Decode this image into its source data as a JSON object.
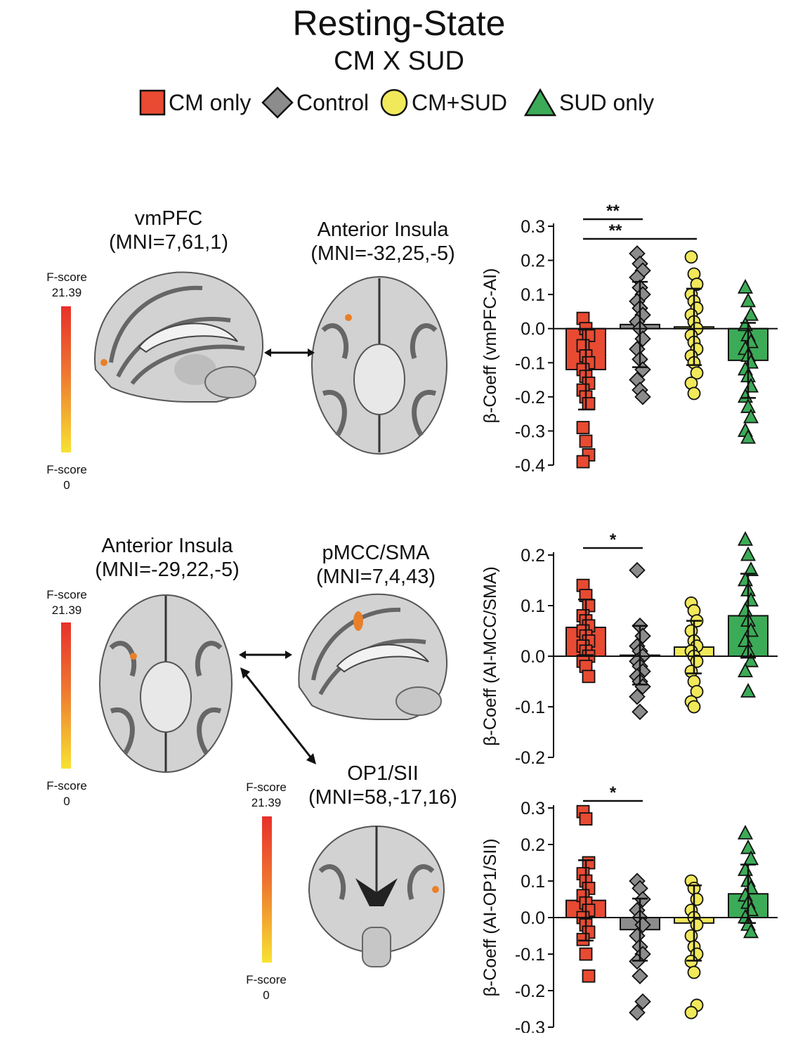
{
  "title": "Resting-State",
  "subtitle": "CM X SUD",
  "legend": [
    {
      "label": "CM only",
      "marker": "square",
      "color": "#e84a32"
    },
    {
      "label": "Control",
      "marker": "diamond",
      "color": "#8c8c8c"
    },
    {
      "label": "CM+SUD",
      "marker": "circle",
      "color": "#f1e95a"
    },
    {
      "label": "SUD only",
      "marker": "triangle",
      "color": "#3cab57"
    }
  ],
  "brain_panels": {
    "top": {
      "region_a": {
        "name": "vmPFC",
        "mni": "(MNI=7,61,1)"
      },
      "region_b": {
        "name": "Anterior Insula",
        "mni": "(MNI=-32,25,-5)"
      },
      "colorbar": {
        "top_label": "F-score",
        "top_value": "21.39",
        "bottom_label": "F-score",
        "bottom_value": "0"
      }
    },
    "bottom": {
      "region_a": {
        "name": "Anterior Insula",
        "mni": "(MNI=-29,22,-5)"
      },
      "region_b": {
        "name": "pMCC/SMA",
        "mni": "(MNI=7,4,43)"
      },
      "region_c": {
        "name": "OP1/SII",
        "mni": "(MNI=58,-17,16)"
      },
      "colorbar": {
        "top_label": "F-score",
        "top_value": "21.39",
        "bottom_label": "F-score",
        "bottom_value": "0"
      },
      "colorbar2": {
        "top_label": "F-score",
        "top_value": "21.39",
        "bottom_label": "F-score",
        "bottom_value": "0"
      }
    }
  },
  "chart_data": [
    {
      "type": "bar",
      "ylabel": "β-Coeff (vmPFC-AI)",
      "ylim": [
        -0.4,
        0.3
      ],
      "yticks": [
        "0.3",
        "0.2",
        "0.1",
        "0.0",
        "-0.1",
        "-0.2",
        "-0.3",
        "-0.4"
      ],
      "categories": [
        "CM only",
        "Control",
        "CM+SUD",
        "SUD only"
      ],
      "means": [
        -0.12,
        0.012,
        0.005,
        -0.093
      ],
      "sd": [
        0.117,
        0.125,
        0.112,
        0.11
      ],
      "points": [
        [
          0.03,
          0.0,
          -0.02,
          -0.05,
          -0.08,
          -0.1,
          -0.12,
          -0.14,
          -0.16,
          -0.18,
          -0.2,
          -0.22,
          -0.29,
          -0.33,
          -0.37,
          -0.39
        ],
        [
          0.22,
          0.19,
          0.17,
          0.15,
          0.12,
          0.1,
          0.08,
          0.06,
          0.04,
          0.02,
          0.0,
          -0.03,
          -0.06,
          -0.09,
          -0.12,
          -0.15,
          -0.18,
          -0.2
        ],
        [
          0.21,
          0.16,
          0.13,
          0.1,
          0.08,
          0.06,
          0.04,
          0.02,
          0.0,
          -0.02,
          -0.04,
          -0.06,
          -0.08,
          -0.1,
          -0.13,
          -0.16,
          -0.19
        ],
        [
          0.12,
          0.08,
          0.04,
          0.01,
          -0.02,
          -0.04,
          -0.06,
          -0.08,
          -0.1,
          -0.12,
          -0.14,
          -0.17,
          -0.2,
          -0.23,
          -0.26,
          -0.3,
          -0.32
        ]
      ],
      "significance": [
        {
          "from": 0,
          "to": 1,
          "label": "**"
        },
        {
          "from": 0,
          "to": 2,
          "label": "**"
        }
      ]
    },
    {
      "type": "bar",
      "ylabel": "β-Coeff (AI-MCC/SMA)",
      "ylim": [
        -0.2,
        0.25
      ],
      "yticks": [
        "0.2",
        "0.1",
        "0.0",
        "-0.1",
        "-0.2"
      ],
      "categories": [
        "CM only",
        "Control",
        "CM+SUD",
        "SUD only"
      ],
      "means": [
        0.057,
        0.002,
        0.018,
        0.08
      ],
      "sd": [
        0.055,
        0.058,
        0.052,
        0.083
      ],
      "points": [
        [
          0.14,
          0.12,
          0.1,
          0.08,
          0.07,
          0.06,
          0.05,
          0.04,
          0.03,
          0.02,
          0.01,
          0.0,
          -0.01,
          -0.02,
          -0.04
        ],
        [
          0.17,
          0.06,
          0.04,
          0.02,
          0.01,
          0.0,
          -0.01,
          -0.02,
          -0.03,
          -0.04,
          -0.05,
          -0.06,
          -0.08,
          -0.11
        ],
        [
          0.105,
          0.09,
          0.07,
          0.05,
          0.03,
          0.02,
          0.01,
          0.0,
          -0.01,
          -0.03,
          -0.05,
          -0.07,
          -0.09,
          -0.1
        ],
        [
          0.23,
          0.2,
          0.17,
          0.15,
          0.13,
          0.11,
          0.09,
          0.07,
          0.05,
          0.03,
          0.01,
          -0.01,
          -0.03,
          -0.07
        ]
      ],
      "significance": [
        {
          "from": 0,
          "to": 1,
          "label": "*"
        }
      ]
    },
    {
      "type": "bar",
      "ylabel": "β-Coeff (AI-OP1/SII)",
      "ylim": [
        -0.3,
        0.33
      ],
      "yticks": [
        "0.3",
        "0.2",
        "0.1",
        "0.0",
        "-0.1",
        "-0.2",
        "-0.3"
      ],
      "categories": [
        "CM only",
        "Control",
        "CM+SUD",
        "SUD only"
      ],
      "means": [
        0.047,
        -0.033,
        -0.015,
        0.065
      ],
      "sd": [
        0.11,
        0.085,
        0.103,
        0.08
      ],
      "points": [
        [
          0.29,
          0.27,
          0.15,
          0.12,
          0.1,
          0.08,
          0.06,
          0.04,
          0.02,
          0.0,
          -0.02,
          -0.04,
          -0.06,
          -0.1,
          -0.16
        ],
        [
          0.1,
          0.08,
          0.05,
          0.02,
          0.0,
          -0.02,
          -0.05,
          -0.08,
          -0.1,
          -0.12,
          -0.16,
          -0.23,
          -0.26
        ],
        [
          0.1,
          0.08,
          0.05,
          0.02,
          0.0,
          -0.02,
          -0.05,
          -0.08,
          -0.1,
          -0.12,
          -0.15,
          -0.24,
          -0.26
        ],
        [
          0.23,
          0.19,
          0.16,
          0.13,
          0.1,
          0.08,
          0.06,
          0.04,
          0.02,
          0.0,
          -0.02,
          -0.04
        ]
      ],
      "significance": [
        {
          "from": 0,
          "to": 1,
          "label": "*"
        }
      ]
    }
  ]
}
